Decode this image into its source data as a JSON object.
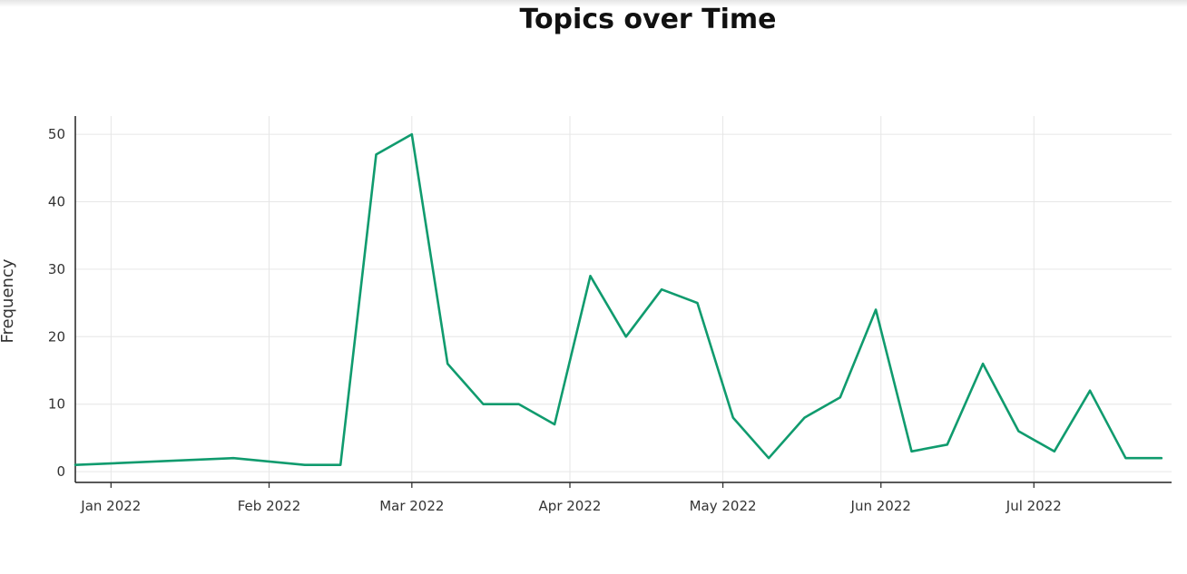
{
  "chart_data": {
    "type": "line",
    "title": "Topics over Time",
    "xlabel": "",
    "ylabel": "Frequency",
    "x_ticks": [
      "Jan 2022",
      "Feb 2022",
      "Mar 2022",
      "Apr 2022",
      "May 2022",
      "Jun 2022",
      "Jul 2022"
    ],
    "y_ticks": [
      0,
      10,
      20,
      30,
      40,
      50
    ],
    "xlim": [
      "2021-12-25",
      "2022-07-28"
    ],
    "ylim": [
      -1.6,
      52.7
    ],
    "grid": true,
    "legend": "none",
    "series": [
      {
        "color": "#109b6e",
        "x": [
          "2021-12-25",
          "2022-01-25",
          "2022-02-08",
          "2022-02-15",
          "2022-02-22",
          "2022-03-01",
          "2022-03-08",
          "2022-03-15",
          "2022-03-22",
          "2022-03-29",
          "2022-04-05",
          "2022-04-12",
          "2022-04-19",
          "2022-04-26",
          "2022-05-03",
          "2022-05-10",
          "2022-05-17",
          "2022-05-24",
          "2022-05-31",
          "2022-06-07",
          "2022-06-14",
          "2022-06-21",
          "2022-06-28",
          "2022-07-05",
          "2022-07-12",
          "2022-07-19",
          "2022-07-26"
        ],
        "values": [
          1,
          2,
          1,
          1,
          47,
          50,
          16,
          10,
          10,
          7,
          29,
          20,
          27,
          25,
          8,
          2,
          8,
          11,
          24,
          3,
          4,
          16,
          6,
          3,
          12,
          2,
          2
        ]
      }
    ]
  }
}
